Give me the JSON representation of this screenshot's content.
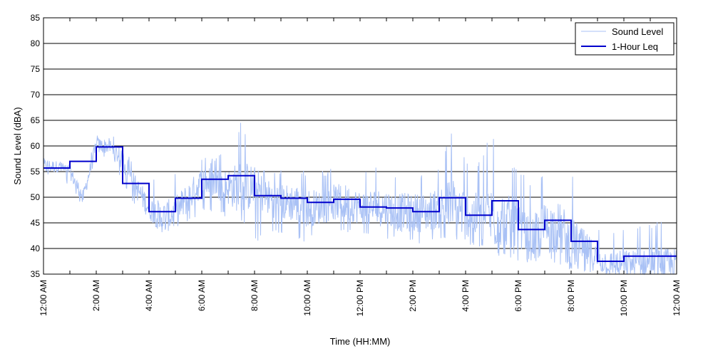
{
  "chart_data": {
    "type": "line",
    "title": "",
    "xlabel": "Time (HH:MM)",
    "ylabel": "Sound Level (dBA)",
    "ylim": [
      35,
      85
    ],
    "xlim": [
      0,
      24
    ],
    "grid": "horizontal",
    "legend_position": "top-right",
    "yticks": [
      35,
      40,
      45,
      50,
      55,
      60,
      65,
      70,
      75,
      80,
      85
    ],
    "x_ticks": [
      {
        "x": 0,
        "label": "12:00 AM"
      },
      {
        "x": 1,
        "label": ""
      },
      {
        "x": 2,
        "label": "2:00 AM"
      },
      {
        "x": 3,
        "label": ""
      },
      {
        "x": 4,
        "label": "4:00 AM"
      },
      {
        "x": 5,
        "label": ""
      },
      {
        "x": 6,
        "label": "6:00 AM"
      },
      {
        "x": 7,
        "label": ""
      },
      {
        "x": 8,
        "label": "8:00 AM"
      },
      {
        "x": 9,
        "label": ""
      },
      {
        "x": 10,
        "label": "10:00 AM"
      },
      {
        "x": 11,
        "label": ""
      },
      {
        "x": 12,
        "label": "12:00 PM"
      },
      {
        "x": 13,
        "label": ""
      },
      {
        "x": 14,
        "label": "2:00 PM"
      },
      {
        "x": 15,
        "label": ""
      },
      {
        "x": 16,
        "label": "4:00 PM"
      },
      {
        "x": 17,
        "label": ""
      },
      {
        "x": 18,
        "label": "6:00 PM"
      },
      {
        "x": 19,
        "label": ""
      },
      {
        "x": 20,
        "label": "8:00 PM"
      },
      {
        "x": 21,
        "label": ""
      },
      {
        "x": 22,
        "label": "10:00 PM"
      },
      {
        "x": 23,
        "label": ""
      },
      {
        "x": 24,
        "label": "12:00 AM"
      }
    ],
    "series": [
      {
        "name": "Sound Level",
        "color": "#a9c1f5",
        "style": "thin-line",
        "approx_envelope": {
          "x": [
            0,
            0.5,
            1,
            1.5,
            2,
            2.5,
            3,
            3.5,
            4,
            4.5,
            5,
            5.5,
            6,
            6.5,
            7,
            7.5,
            8,
            8.5,
            9,
            9.5,
            10,
            10.5,
            11,
            11.5,
            12,
            12.5,
            13,
            13.5,
            14,
            14.5,
            15,
            15.5,
            16,
            16.5,
            17,
            17.5,
            18,
            18.5,
            19,
            19.5,
            20,
            20.5,
            21,
            21.5,
            22,
            22.5,
            23,
            23.5,
            24
          ],
          "y_mean": [
            56,
            56,
            55,
            50,
            60,
            60,
            57,
            52,
            48,
            46,
            47,
            50,
            53,
            53,
            52,
            52,
            52,
            50,
            49,
            49,
            48,
            48,
            49,
            49,
            48,
            48,
            48,
            47,
            47,
            47,
            48,
            48,
            47,
            46,
            46,
            46,
            43,
            42,
            44,
            44,
            41,
            40,
            38,
            37,
            37,
            37,
            37,
            37,
            37
          ],
          "y_min": [
            54,
            54,
            52,
            48,
            57,
            58,
            53,
            48,
            45,
            43,
            43,
            45,
            47,
            47,
            46,
            45,
            41,
            43,
            43,
            42,
            41,
            43,
            43,
            43,
            43,
            42,
            42,
            41,
            41,
            41,
            42,
            41,
            41,
            40,
            39,
            38,
            37,
            37,
            38,
            37,
            36,
            35,
            35,
            35,
            35,
            35,
            35,
            35,
            35
          ],
          "y_max": [
            60,
            58,
            57,
            53,
            63,
            63,
            60,
            56,
            54,
            54,
            55,
            56,
            58,
            58,
            59,
            65,
            56,
            56,
            56,
            56,
            55,
            55,
            56,
            56,
            55,
            56,
            55,
            55,
            55,
            55,
            57,
            63,
            58,
            57,
            63,
            57,
            56,
            52,
            56,
            56,
            56,
            48,
            45,
            44,
            45,
            45,
            45,
            46,
            46
          ]
        }
      },
      {
        "name": "1-Hour Leq",
        "color": "#0000cc",
        "style": "step",
        "x_start": [
          0,
          1,
          2,
          3,
          4,
          5,
          6,
          7,
          8,
          9,
          10,
          11,
          12,
          13,
          14,
          15,
          16,
          17,
          18,
          19,
          20,
          21,
          22,
          23
        ],
        "values": [
          55.7,
          57.0,
          59.8,
          52.7,
          47.2,
          49.8,
          53.5,
          54.2,
          50.3,
          49.8,
          49.0,
          49.6,
          48.1,
          47.9,
          47.2,
          49.9,
          46.5,
          49.3,
          43.7,
          45.5,
          41.4,
          37.5,
          38.5,
          38.5
        ]
      }
    ]
  }
}
